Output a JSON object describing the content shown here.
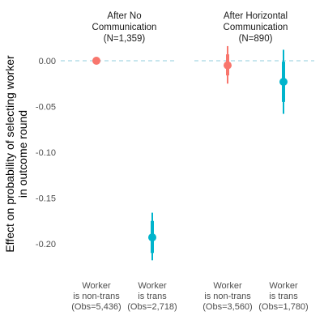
{
  "chart_data": {
    "type": "scatter",
    "subtype": "point-range (coefficient plot)",
    "ylabel_lines": [
      "Effect on probability of selecting worker",
      "in outcome round"
    ],
    "xlabel": "",
    "ylim": [
      -0.22,
      0.02
    ],
    "yticks": [
      0.0,
      -0.05,
      -0.1,
      -0.15,
      -0.2
    ],
    "ytick_labels": [
      "0.00",
      "-0.05",
      "-0.10",
      "-0.15",
      "-0.20"
    ],
    "grid": false,
    "reference_line": {
      "y": 0.0,
      "style": "dashed",
      "color": "#a6d8e4"
    },
    "facets": [
      {
        "title_lines": [
          "After No",
          "Communication",
          "(N=1,359)"
        ],
        "points": [
          {
            "label_lines": [
              "Worker",
              "is non-trans",
              "(Obs=5,436)"
            ],
            "estimate": 0.0,
            "ci_inner": [
              0.0,
              0.0
            ],
            "ci_outer": [
              0.0,
              0.0
            ],
            "color": "#f8766d"
          },
          {
            "label_lines": [
              "Worker",
              "is trans",
              "(Obs=2,718)"
            ],
            "estimate": -0.193,
            "ci_inner": [
              -0.21,
              -0.175
            ],
            "ci_outer": [
              -0.218,
              -0.166
            ],
            "color": "#00b4cc"
          }
        ]
      },
      {
        "title_lines": [
          "After Horizontal",
          "Communication",
          "(N=890)"
        ],
        "points": [
          {
            "label_lines": [
              "Worker",
              "is non-trans",
              "(Obs=3,560)"
            ],
            "estimate": -0.005,
            "ci_inner": [
              -0.016,
              0.007
            ],
            "ci_outer": [
              -0.025,
              0.016
            ],
            "color": "#f8766d"
          },
          {
            "label_lines": [
              "Worker",
              "is trans",
              "(Obs=1,780)"
            ],
            "estimate": -0.023,
            "ci_inner": [
              -0.045,
              -0.001
            ],
            "ci_outer": [
              -0.058,
              0.012
            ],
            "color": "#00b4cc"
          }
        ]
      }
    ]
  }
}
